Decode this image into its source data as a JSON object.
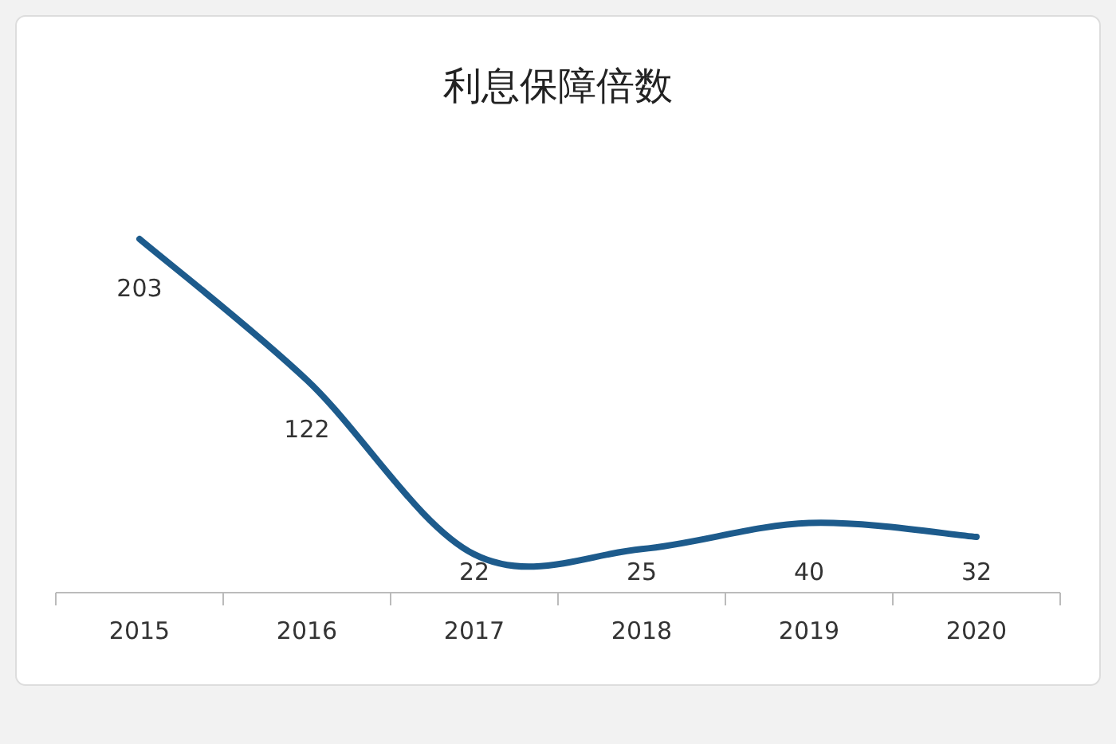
{
  "chart_data": {
    "type": "line",
    "title": "利息保障倍数",
    "categories": [
      "2015",
      "2016",
      "2017",
      "2018",
      "2019",
      "2020"
    ],
    "values": [
      203,
      122,
      22,
      25,
      40,
      32
    ],
    "color": "#1d5b8c",
    "data_labels": true
  }
}
